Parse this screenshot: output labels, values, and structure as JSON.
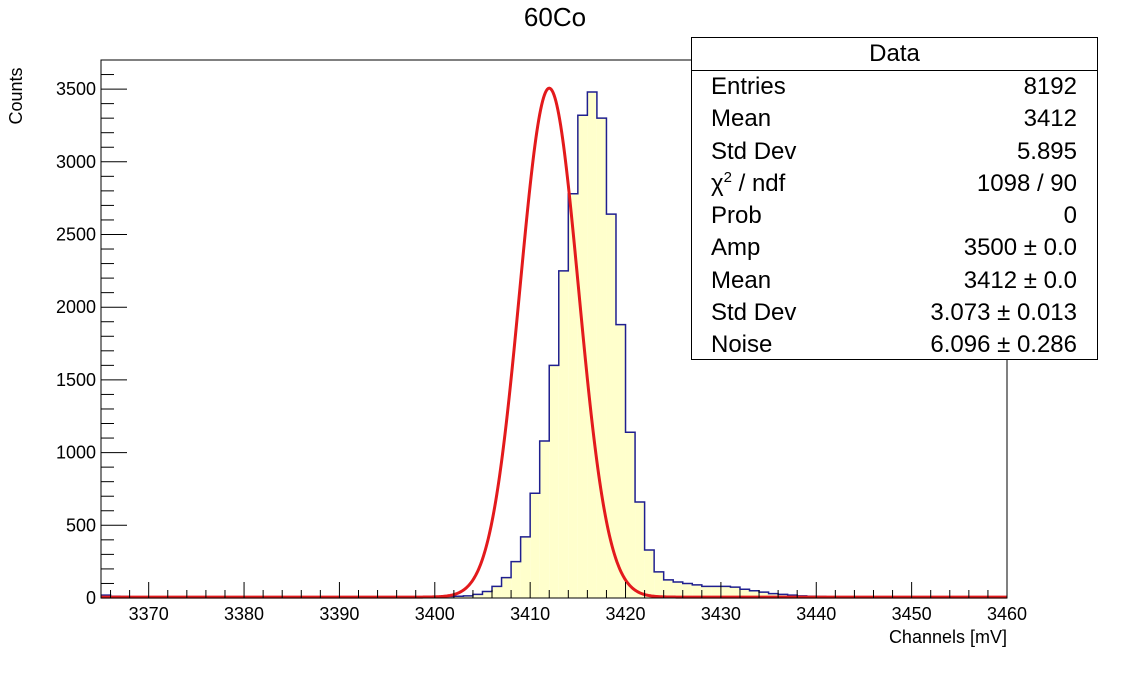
{
  "chart_data": {
    "type": "histogram",
    "title": "60Co",
    "xlabel": "Channels [mV]",
    "ylabel": "Counts",
    "xlim": [
      3365,
      3460
    ],
    "ylim": [
      0,
      3700
    ],
    "xticks": [
      3370,
      3380,
      3390,
      3400,
      3410,
      3420,
      3430,
      3440,
      3450,
      3460
    ],
    "yticks": [
      0,
      500,
      1000,
      1500,
      2000,
      2500,
      3000,
      3500
    ],
    "bin_width": 1,
    "bins": {
      "x_start": 3365,
      "counts": [
        20,
        12,
        10,
        8,
        8,
        7,
        6,
        6,
        5,
        5,
        5,
        5,
        5,
        5,
        5,
        5,
        5,
        5,
        5,
        5,
        5,
        5,
        5,
        5,
        5,
        5,
        5,
        5,
        5,
        5,
        5,
        5,
        6,
        6,
        7,
        8,
        10,
        12,
        15,
        25,
        45,
        80,
        140,
        250,
        420,
        720,
        1080,
        1600,
        2250,
        2780,
        3320,
        3480,
        3300,
        2640,
        1880,
        1140,
        660,
        330,
        180,
        125,
        110,
        100,
        90,
        80,
        80,
        80,
        75,
        60,
        50,
        40,
        30,
        25,
        20,
        15,
        12,
        10,
        8,
        7,
        6,
        5,
        5,
        5,
        5,
        5,
        5,
        5,
        5,
        5,
        5,
        5,
        5,
        5,
        5,
        5,
        5
      ]
    },
    "fit": {
      "function": "gaussian + noise",
      "amp": 3500,
      "mean": 3412,
      "sigma": 3.073,
      "noise": 6.096,
      "color": "#e31a1c"
    },
    "colors": {
      "fill": "#ffffcc",
      "line": "#1f1f8f",
      "fit": "#e31a1c"
    },
    "stats_box": {
      "header": "Data",
      "rows": [
        {
          "label": "Entries",
          "value": "8192"
        },
        {
          "label": "Mean",
          "value": "3412"
        },
        {
          "label": "Std Dev",
          "value": "5.895"
        },
        {
          "label_pre": "χ",
          "label_sup": "2",
          "label_post": " / ndf",
          "value": "1098 / 90"
        },
        {
          "label": "Prob",
          "value": "0"
        },
        {
          "label": "Amp",
          "value": "3500 ± 0.0"
        },
        {
          "label": "Mean",
          "value": "3412 ± 0.0"
        },
        {
          "label": "Std Dev",
          "value": "3.073 ± 0.013"
        },
        {
          "label": "Noise",
          "value": "6.096 ± 0.286"
        }
      ]
    }
  }
}
